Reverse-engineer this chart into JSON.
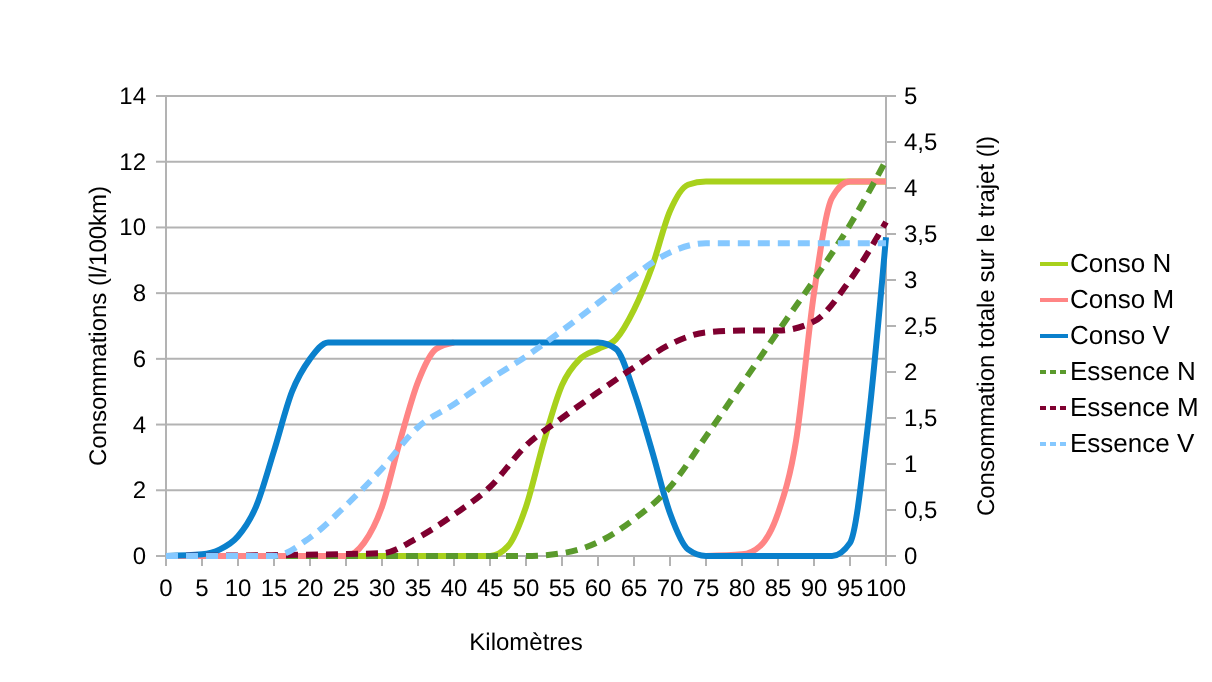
{
  "chart_data": {
    "type": "line",
    "xlabel": "Kilomètres",
    "ylabel": "Consommations (l/100km)",
    "y2label": "Consommation totale sur le trajet (l)",
    "xlim": [
      0,
      100
    ],
    "xticks": [
      0,
      5,
      10,
      15,
      20,
      25,
      30,
      35,
      40,
      45,
      50,
      55,
      60,
      65,
      70,
      75,
      80,
      85,
      90,
      95,
      100
    ],
    "ylim": [
      0,
      14
    ],
    "yticks": [
      0,
      2,
      4,
      6,
      8,
      10,
      12,
      14
    ],
    "y2lim": [
      0,
      5
    ],
    "y2ticks": [
      0,
      {
        "value": 0.5,
        "label": "0,5"
      },
      1,
      {
        "value": 1.5,
        "label": "1,5"
      },
      2,
      {
        "value": 2.5,
        "label": "2,5"
      },
      3,
      {
        "value": 3.5,
        "label": "3,5"
      },
      4,
      {
        "value": 4.5,
        "label": "4,5"
      },
      5
    ],
    "grid": "y",
    "legend": "right",
    "marker": "none",
    "series": [
      {
        "name": "Conso N",
        "color": "#a8d11c",
        "line_style": "solid",
        "x": [
          0,
          45,
          47.5,
          50,
          52.5,
          55,
          57.5,
          60,
          62.5,
          65,
          67.5,
          70,
          72.5,
          75,
          100
        ],
        "values": [
          0,
          0,
          0.3,
          1.5,
          3.5,
          5.2,
          6,
          6.3,
          6.6,
          7.5,
          8.8,
          10.5,
          11.3,
          11.4,
          11.4
        ]
      },
      {
        "name": "Conso M",
        "color": "#ff8585",
        "line_style": "solid",
        "x": [
          0,
          25,
          27.5,
          30,
          32.5,
          35,
          37.5,
          40,
          60,
          62.5,
          65,
          67.5,
          70,
          72.5,
          75,
          80,
          82.5,
          85,
          87.5,
          90,
          92.5,
          95,
          100
        ],
        "values": [
          0,
          0,
          0.4,
          1.5,
          3.5,
          5.3,
          6.3,
          6.5,
          null,
          null,
          null,
          null,
          null,
          null,
          0,
          0.05,
          0.3,
          1.3,
          3.5,
          8,
          10.9,
          11.4,
          11.4
        ]
      },
      {
        "name": "Conso V",
        "color": "#0a80cc",
        "line_style": "solid",
        "x": [
          0,
          5,
          7.5,
          10,
          12.5,
          15,
          17.5,
          20,
          22.5,
          60,
          62.5,
          65,
          67.5,
          70,
          72.5,
          75,
          92.5,
          95,
          97.5,
          100
        ],
        "values": [
          0,
          0.05,
          0.2,
          0.6,
          1.5,
          3.2,
          5,
          6,
          6.5,
          6.5,
          6.3,
          5,
          3.2,
          1.3,
          0.2,
          0,
          0,
          0.4,
          4,
          9.7
        ]
      },
      {
        "name": "Essence N",
        "color": "#5a9a2c",
        "line_style": "dashed",
        "axis": "y2",
        "x": [
          0,
          50,
          55,
          60,
          65,
          70,
          75,
          80,
          85,
          90,
          95,
          100
        ],
        "values": [
          0,
          0,
          0.03,
          0.15,
          0.4,
          0.75,
          1.3,
          1.87,
          2.44,
          3,
          3.6,
          4.3
        ]
      },
      {
        "name": "Essence M",
        "color": "#7f0030",
        "line_style": "dashed",
        "axis": "y2",
        "x": [
          0,
          30,
          35,
          40,
          45,
          50,
          55,
          60,
          65,
          70,
          75,
          80,
          85,
          90,
          95,
          100
        ],
        "values": [
          0,
          0.03,
          0.2,
          0.45,
          0.75,
          1.2,
          1.5,
          1.78,
          2.05,
          2.3,
          2.43,
          2.45,
          2.45,
          2.55,
          3,
          3.63
        ]
      },
      {
        "name": "Essence V",
        "color": "#85c8ff",
        "line_style": "dashed",
        "axis": "y2",
        "x": [
          0,
          15,
          20,
          25,
          30,
          35,
          40,
          45,
          50,
          55,
          60,
          65,
          70,
          75,
          100
        ],
        "values": [
          0,
          0,
          0.2,
          0.55,
          0.95,
          1.4,
          1.65,
          1.92,
          2.17,
          2.45,
          2.75,
          3.05,
          3.3,
          3.4,
          3.4
        ]
      }
    ]
  }
}
